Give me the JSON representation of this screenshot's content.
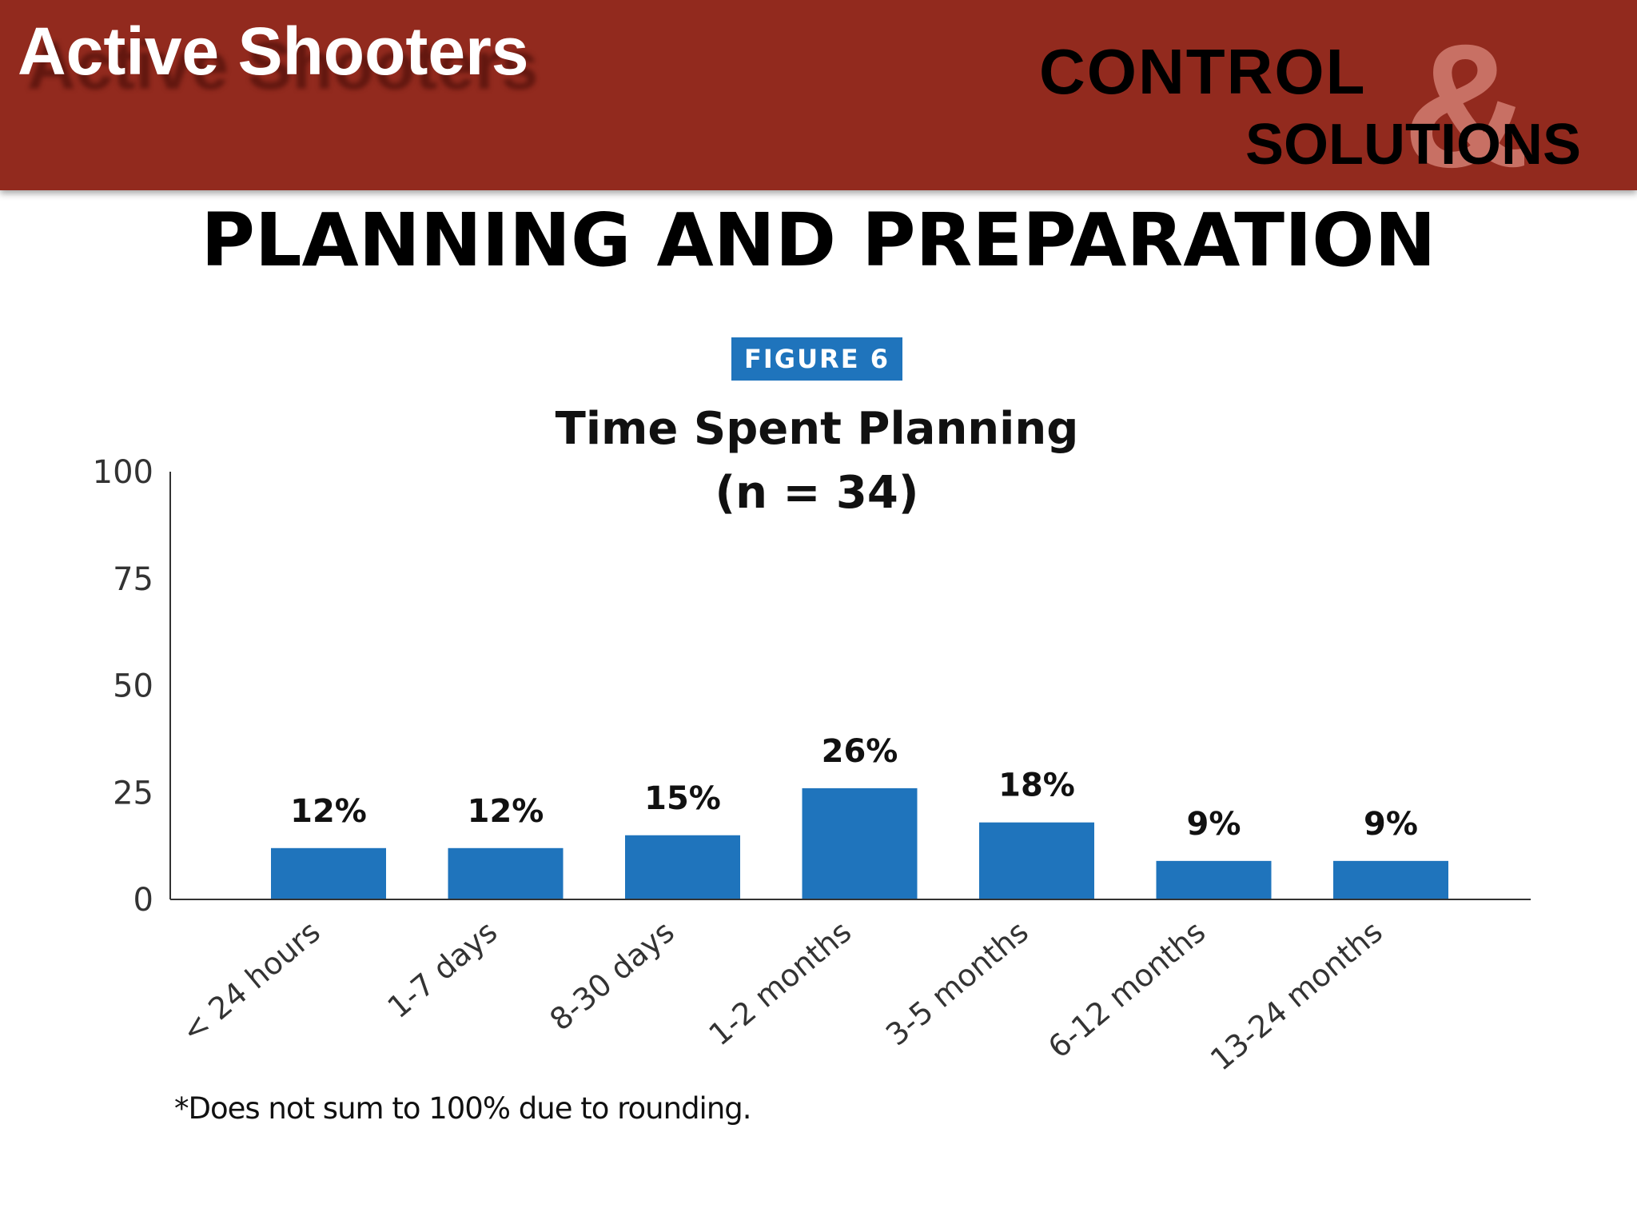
{
  "header": {
    "title": "Active Shooters",
    "logo_word_1": "CONTROL",
    "logo_ampersand": "&",
    "logo_word_2": "SOLUTIONS"
  },
  "slide_title": "PLANNING AND PREPARATION",
  "figure_label": "FIGURE 6",
  "footnote": "*Does not sum to 100% due to rounding.",
  "chart_data": {
    "type": "bar",
    "title": "Time Spent Planning",
    "subtitle": "(n = 34)",
    "categories": [
      "< 24 hours",
      "1-7 days",
      "8-30 days",
      "1-2 months",
      "3-5 months",
      "6-12 months",
      "13-24 months"
    ],
    "values": [
      12,
      12,
      15,
      26,
      18,
      9,
      9
    ],
    "value_labels": [
      "12%",
      "12%",
      "15%",
      "26%",
      "18%",
      "9%",
      "9%"
    ],
    "y_ticks": [
      "0",
      "25",
      "50",
      "75",
      "100"
    ],
    "ylim": [
      0,
      100
    ],
    "xlabel": "",
    "ylabel": "",
    "grid": false,
    "colors": {
      "bar": "#1f74bc",
      "axis": "#333333"
    }
  }
}
